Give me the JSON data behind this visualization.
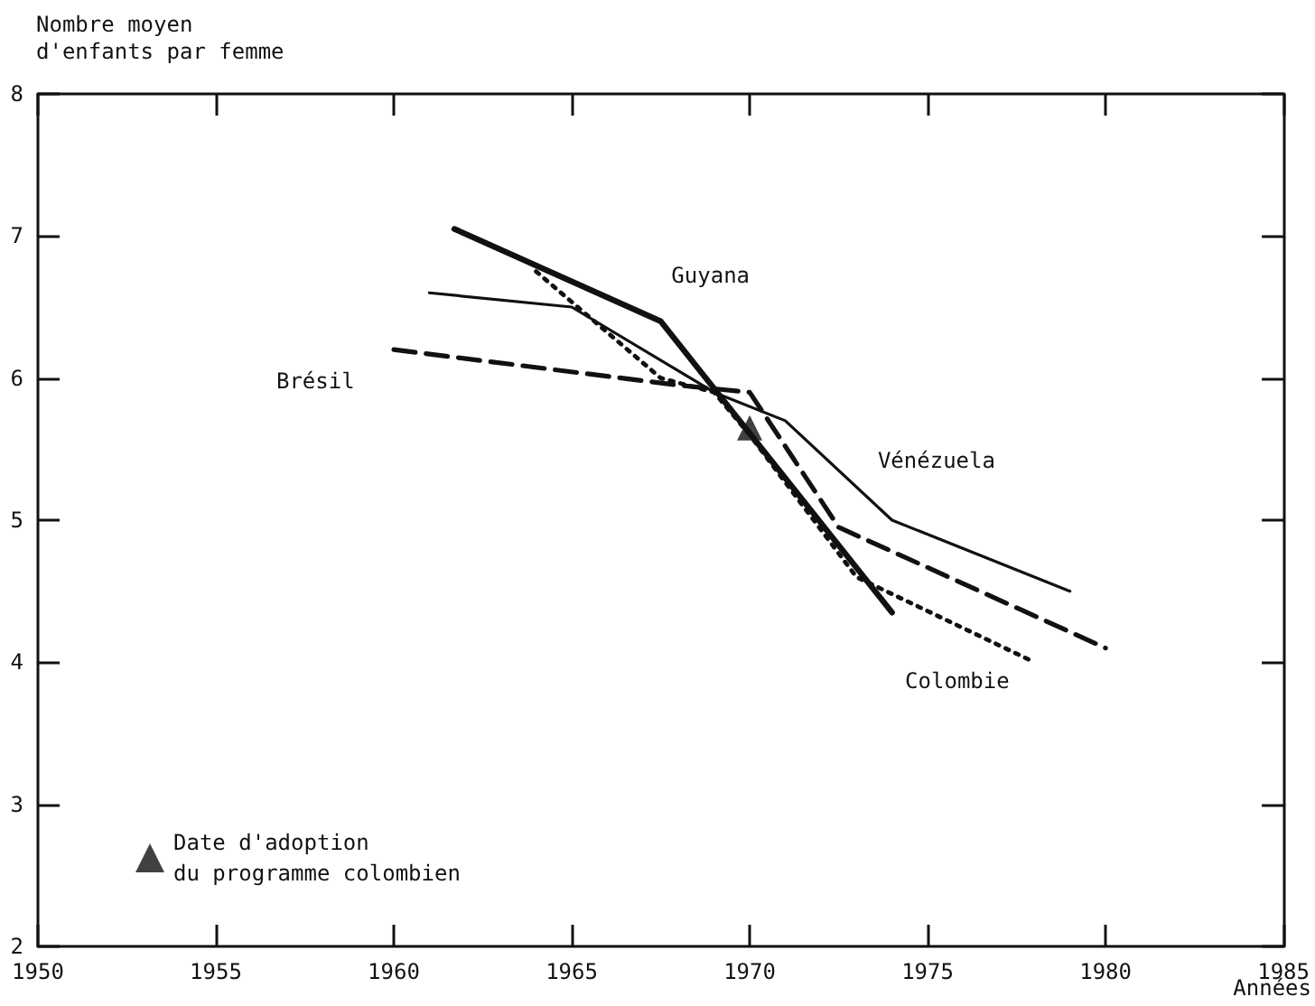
{
  "chart_data": {
    "type": "line",
    "ylabel": "Nombre moyen\nd'enfants par femme",
    "xlabel": "Années",
    "xlim": [
      1950,
      1985
    ],
    "xticks": [
      1950,
      1955,
      1960,
      1965,
      1970,
      1975,
      1980,
      1985
    ],
    "ylim": [
      2,
      8
    ],
    "yticks": [
      2,
      3,
      4,
      5,
      6,
      7,
      8
    ],
    "grid": false,
    "legend": "bottom left",
    "marker": "none",
    "series": [
      {
        "name": "Guyana",
        "color": "#111111",
        "line_style": "solid",
        "x": [
          1961.7,
          1967.5,
          1974
        ],
        "values": [
          7.05,
          6.4,
          4.35
        ]
      },
      {
        "name": "Vénézuela",
        "color": "#111111",
        "line_style": "solid",
        "x": [
          1961,
          1965,
          1969,
          1971,
          1974,
          1979
        ],
        "values": [
          6.6,
          6.5,
          5.9,
          5.7,
          5.0,
          4.5
        ]
      },
      {
        "name": "Brésil",
        "color": "#111111",
        "line_style": "dashed",
        "x": [
          1960,
          1968,
          1970,
          1972.5,
          1980
        ],
        "values": [
          6.2,
          5.95,
          5.9,
          4.95,
          4.1
        ]
      },
      {
        "name": "Colombie",
        "color": "#111111",
        "line_style": "dotted",
        "x": [
          1964,
          1967.5,
          1969,
          1970,
          1973,
          1978
        ],
        "values": [
          6.75,
          6.0,
          5.9,
          5.6,
          4.6,
          4.0
        ]
      },
      {
        "name": "Date d'adoption\ndu programme colombien",
        "type": "scatter",
        "marker": "triangle",
        "color": "#111111",
        "x": [
          1970
        ],
        "values": [
          5.65
        ]
      }
    ]
  }
}
